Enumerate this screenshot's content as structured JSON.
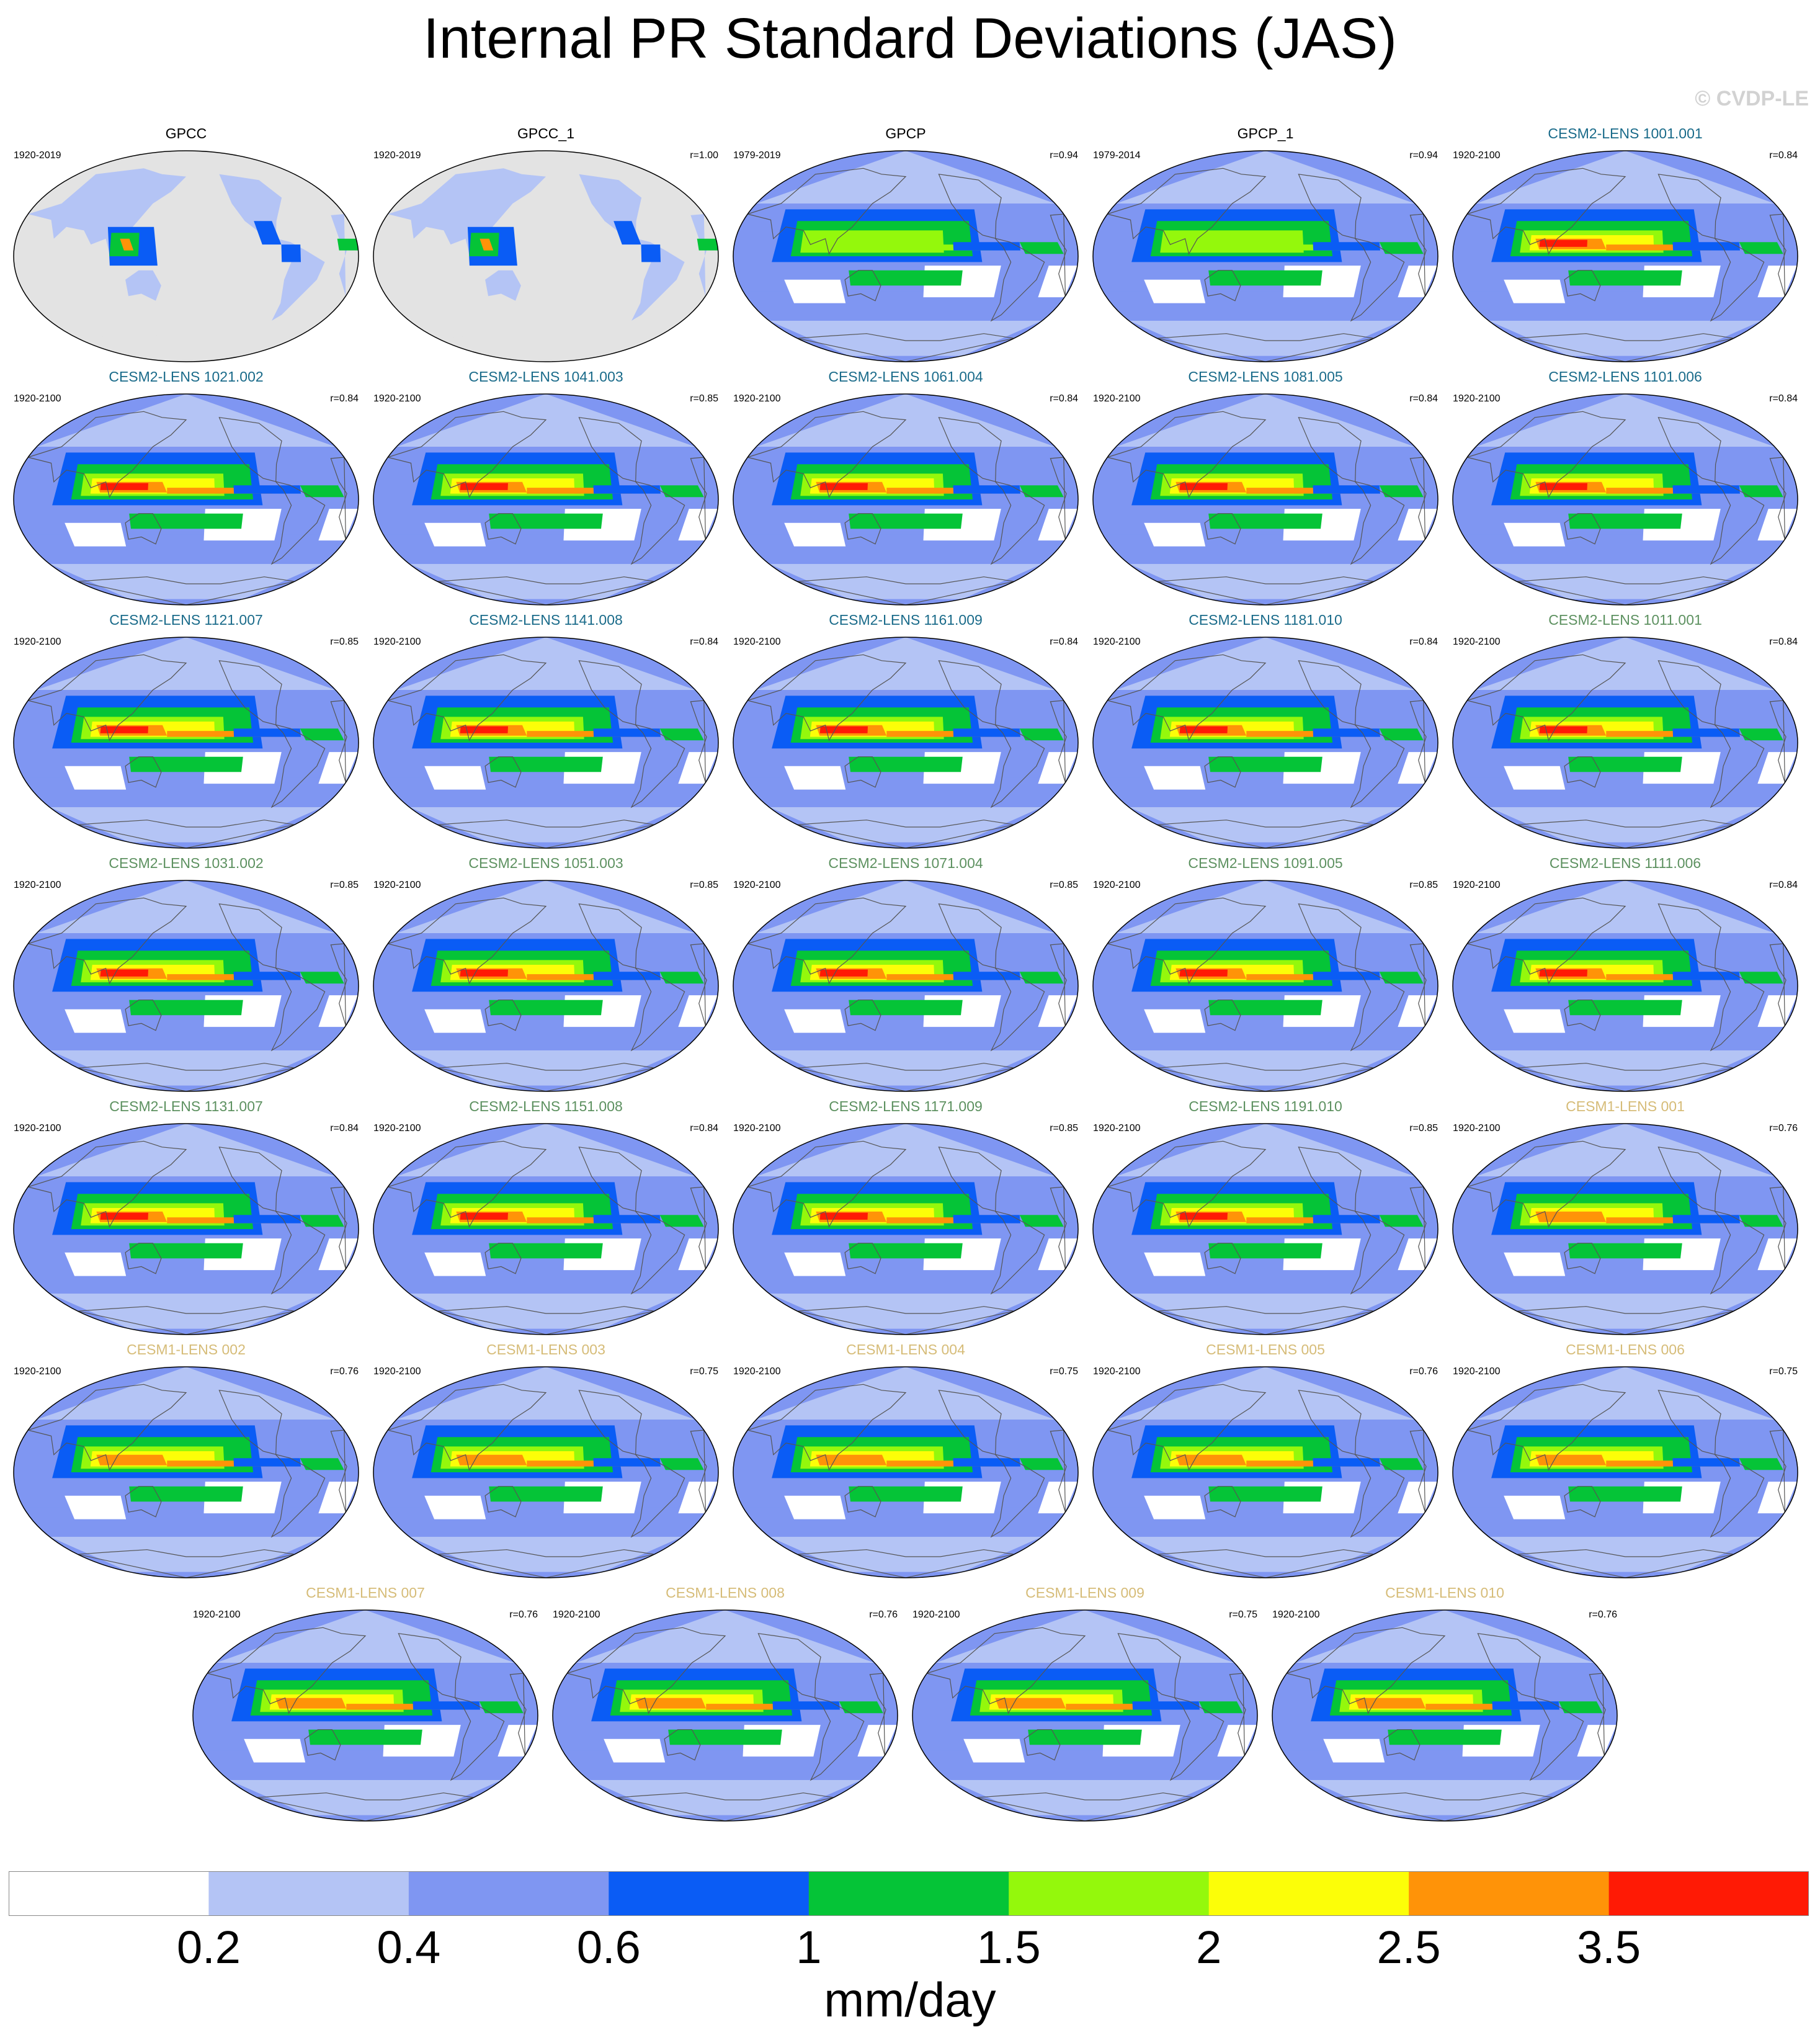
{
  "title": "Internal PR Standard Deviations (JAS)",
  "watermark": "© CVDP-LE",
  "units": "mm/day",
  "colorbar": {
    "levels": [
      "0.2",
      "0.4",
      "0.6",
      "1",
      "1.5",
      "2",
      "2.5",
      "3.5"
    ],
    "colors": [
      "#ffffff",
      "#b4c4f5",
      "#7f96f2",
      "#0a5cf5",
      "#05c437",
      "#94f80c",
      "#fcfe08",
      "#ff9308",
      "#ff1a05"
    ]
  },
  "group_colors": {
    "obs": "#000000",
    "cesm2_a": "#1a6b8a",
    "cesm2_b": "#5d9160",
    "cesm1": "#d6bc78"
  },
  "chart_data": {
    "type": "heatmap",
    "description_type": "panel grid of global maps",
    "variable": "PR",
    "season": "JAS",
    "units": "mm/day",
    "panels": [
      {
        "name": "GPCC",
        "years": "1920-2019",
        "r": "",
        "group": "obs",
        "land_only": true
      },
      {
        "name": "GPCC_1",
        "years": "1920-2019",
        "r": "r=1.00",
        "group": "obs",
        "land_only": true
      },
      {
        "name": "GPCP",
        "years": "1979-2019",
        "r": "r=0.94",
        "group": "obs"
      },
      {
        "name": "GPCP_1",
        "years": "1979-2014",
        "r": "r=0.94",
        "group": "obs"
      },
      {
        "name": "CESM2-LENS 1001.001",
        "years": "1920-2100",
        "r": "r=0.84",
        "group": "cesm2_a"
      },
      {
        "name": "CESM2-LENS 1021.002",
        "years": "1920-2100",
        "r": "r=0.84",
        "group": "cesm2_a"
      },
      {
        "name": "CESM2-LENS 1041.003",
        "years": "1920-2100",
        "r": "r=0.85",
        "group": "cesm2_a"
      },
      {
        "name": "CESM2-LENS 1061.004",
        "years": "1920-2100",
        "r": "r=0.84",
        "group": "cesm2_a"
      },
      {
        "name": "CESM2-LENS 1081.005",
        "years": "1920-2100",
        "r": "r=0.84",
        "group": "cesm2_a"
      },
      {
        "name": "CESM2-LENS 1101.006",
        "years": "1920-2100",
        "r": "r=0.84",
        "group": "cesm2_a"
      },
      {
        "name": "CESM2-LENS 1121.007",
        "years": "1920-2100",
        "r": "r=0.85",
        "group": "cesm2_a"
      },
      {
        "name": "CESM2-LENS 1141.008",
        "years": "1920-2100",
        "r": "r=0.84",
        "group": "cesm2_a"
      },
      {
        "name": "CESM2-LENS 1161.009",
        "years": "1920-2100",
        "r": "r=0.84",
        "group": "cesm2_a"
      },
      {
        "name": "CESM2-LENS 1181.010",
        "years": "1920-2100",
        "r": "r=0.84",
        "group": "cesm2_a"
      },
      {
        "name": "CESM2-LENS 1011.001",
        "years": "1920-2100",
        "r": "r=0.84",
        "group": "cesm2_b"
      },
      {
        "name": "CESM2-LENS 1031.002",
        "years": "1920-2100",
        "r": "r=0.85",
        "group": "cesm2_b"
      },
      {
        "name": "CESM2-LENS 1051.003",
        "years": "1920-2100",
        "r": "r=0.85",
        "group": "cesm2_b"
      },
      {
        "name": "CESM2-LENS 1071.004",
        "years": "1920-2100",
        "r": "r=0.85",
        "group": "cesm2_b"
      },
      {
        "name": "CESM2-LENS 1091.005",
        "years": "1920-2100",
        "r": "r=0.85",
        "group": "cesm2_b"
      },
      {
        "name": "CESM2-LENS 1111.006",
        "years": "1920-2100",
        "r": "r=0.84",
        "group": "cesm2_b"
      },
      {
        "name": "CESM2-LENS 1131.007",
        "years": "1920-2100",
        "r": "r=0.84",
        "group": "cesm2_b"
      },
      {
        "name": "CESM2-LENS 1151.008",
        "years": "1920-2100",
        "r": "r=0.84",
        "group": "cesm2_b"
      },
      {
        "name": "CESM2-LENS 1171.009",
        "years": "1920-2100",
        "r": "r=0.85",
        "group": "cesm2_b"
      },
      {
        "name": "CESM2-LENS 1191.010",
        "years": "1920-2100",
        "r": "r=0.85",
        "group": "cesm2_b"
      },
      {
        "name": "CESM1-LENS 001",
        "years": "1920-2100",
        "r": "r=0.76",
        "group": "cesm1"
      },
      {
        "name": "CESM1-LENS 002",
        "years": "1920-2100",
        "r": "r=0.76",
        "group": "cesm1"
      },
      {
        "name": "CESM1-LENS 003",
        "years": "1920-2100",
        "r": "r=0.75",
        "group": "cesm1"
      },
      {
        "name": "CESM1-LENS 004",
        "years": "1920-2100",
        "r": "r=0.75",
        "group": "cesm1"
      },
      {
        "name": "CESM1-LENS 005",
        "years": "1920-2100",
        "r": "r=0.76",
        "group": "cesm1"
      },
      {
        "name": "CESM1-LENS 006",
        "years": "1920-2100",
        "r": "r=0.75",
        "group": "cesm1"
      },
      {
        "name": "CESM1-LENS 007",
        "years": "1920-2100",
        "r": "r=0.76",
        "group": "cesm1"
      },
      {
        "name": "CESM1-LENS 008",
        "years": "1920-2100",
        "r": "r=0.76",
        "group": "cesm1"
      },
      {
        "name": "CESM1-LENS 009",
        "years": "1920-2100",
        "r": "r=0.75",
        "group": "cesm1"
      },
      {
        "name": "CESM1-LENS 010",
        "years": "1920-2100",
        "r": "r=0.76",
        "group": "cesm1"
      }
    ]
  }
}
